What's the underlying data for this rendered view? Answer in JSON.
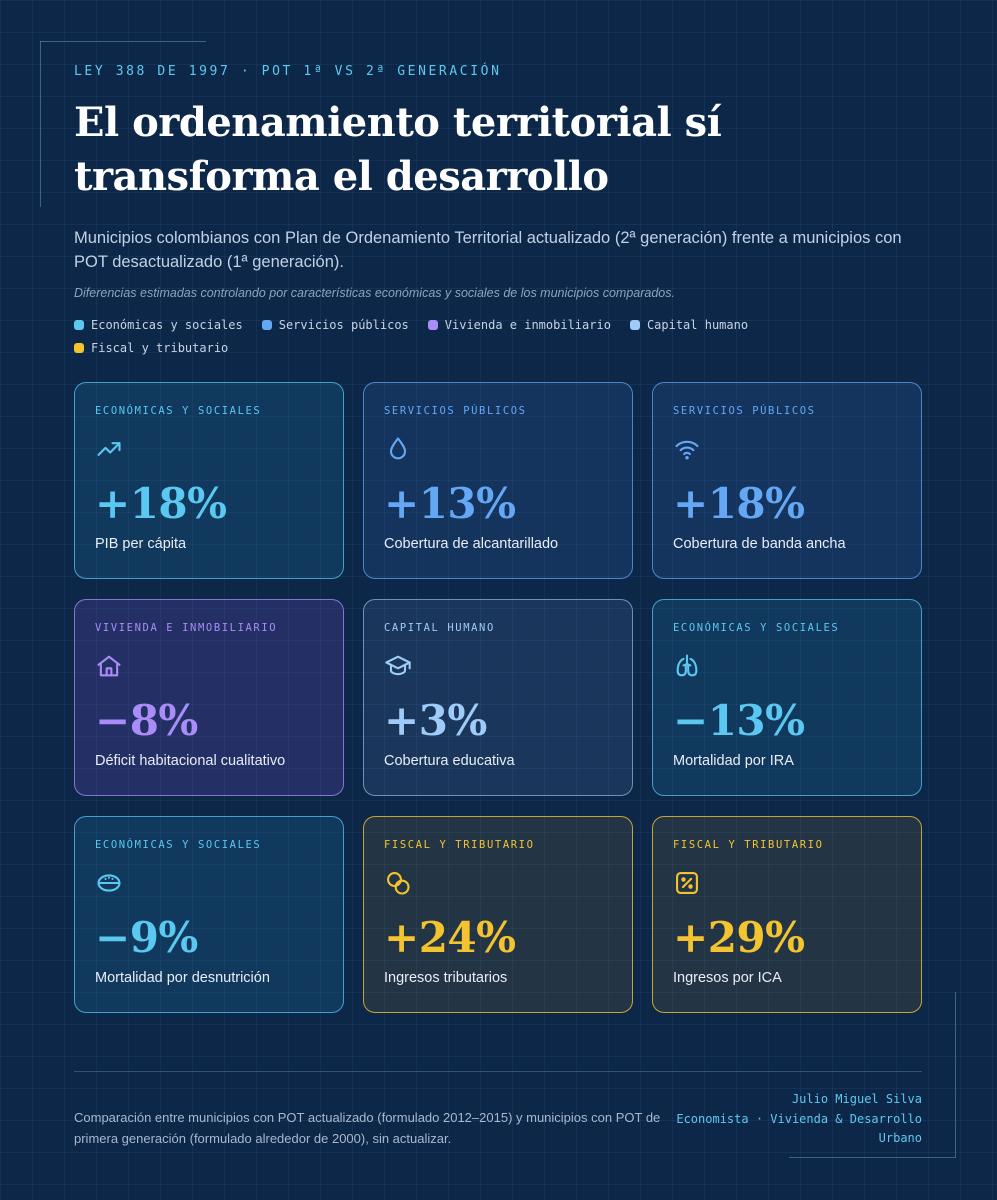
{
  "header": {
    "eyebrow": "LEY 388 DE 1997 · POT 1ª VS 2ª GENERACIÓN",
    "title": "El ordenamiento territorial sí transforma el desarrollo",
    "subtitle": "Municipios colombianos con Plan de Ordenamiento Territorial actualizado (2ª generación) frente a municipios con POT desactualizado (1ª generación).",
    "note": "Diferencias estimadas controlando por características económicas y sociales de los municipios comparados."
  },
  "colors": {
    "economicas": "#5ac8f0",
    "servicios": "#64a8f5",
    "vivienda": "#a98cf8",
    "capital": "#9ecbf7",
    "fiscal": "#f4c430"
  },
  "legend": [
    {
      "label": "Económicas y sociales",
      "color": "#5ac8f0"
    },
    {
      "label": "Servicios públicos",
      "color": "#64a8f5"
    },
    {
      "label": "Vivienda e inmobiliario",
      "color": "#a98cf8"
    },
    {
      "label": "Capital humano",
      "color": "#9ecbf7"
    },
    {
      "label": "Fiscal y tributario",
      "color": "#f4c430"
    }
  ],
  "cards": [
    {
      "category": "Económicas y sociales",
      "icon": "trending-up-icon",
      "value": "+18%",
      "label": "PIB per cápita"
    },
    {
      "category": "Servicios públicos",
      "icon": "water-drop-icon",
      "value": "+13%",
      "label": "Cobertura de alcantarillado"
    },
    {
      "category": "Servicios públicos",
      "icon": "wifi-icon",
      "value": "+18%",
      "label": "Cobertura de banda ancha"
    },
    {
      "category": "Vivienda e inmobiliario",
      "icon": "house-icon",
      "value": "−8%",
      "label": "Déficit habitacional cualitativo"
    },
    {
      "category": "Capital humano",
      "icon": "graduation-cap-icon",
      "value": "+3%",
      "label": "Cobertura educativa"
    },
    {
      "category": "Económicas y sociales",
      "icon": "lungs-icon",
      "value": "−13%",
      "label": "Mortalidad por IRA"
    },
    {
      "category": "Económicas y sociales",
      "icon": "food-bowl-icon",
      "value": "−9%",
      "label": "Mortalidad por desnutrición"
    },
    {
      "category": "Fiscal y tributario",
      "icon": "coins-icon",
      "value": "+24%",
      "label": "Ingresos tributarios"
    },
    {
      "category": "Fiscal y tributario",
      "icon": "percent-badge-icon",
      "value": "+29%",
      "label": "Ingresos por ICA"
    }
  ],
  "footer": {
    "note": "Comparación entre municipios con POT actualizado (formulado 2012–2015) y municipios con POT de primera generación (formulado alrededor de 2000), sin actualizar.",
    "author_name": "Julio Miguel Silva",
    "author_role": "Economista · Vivienda & Desarrollo Urbano"
  }
}
